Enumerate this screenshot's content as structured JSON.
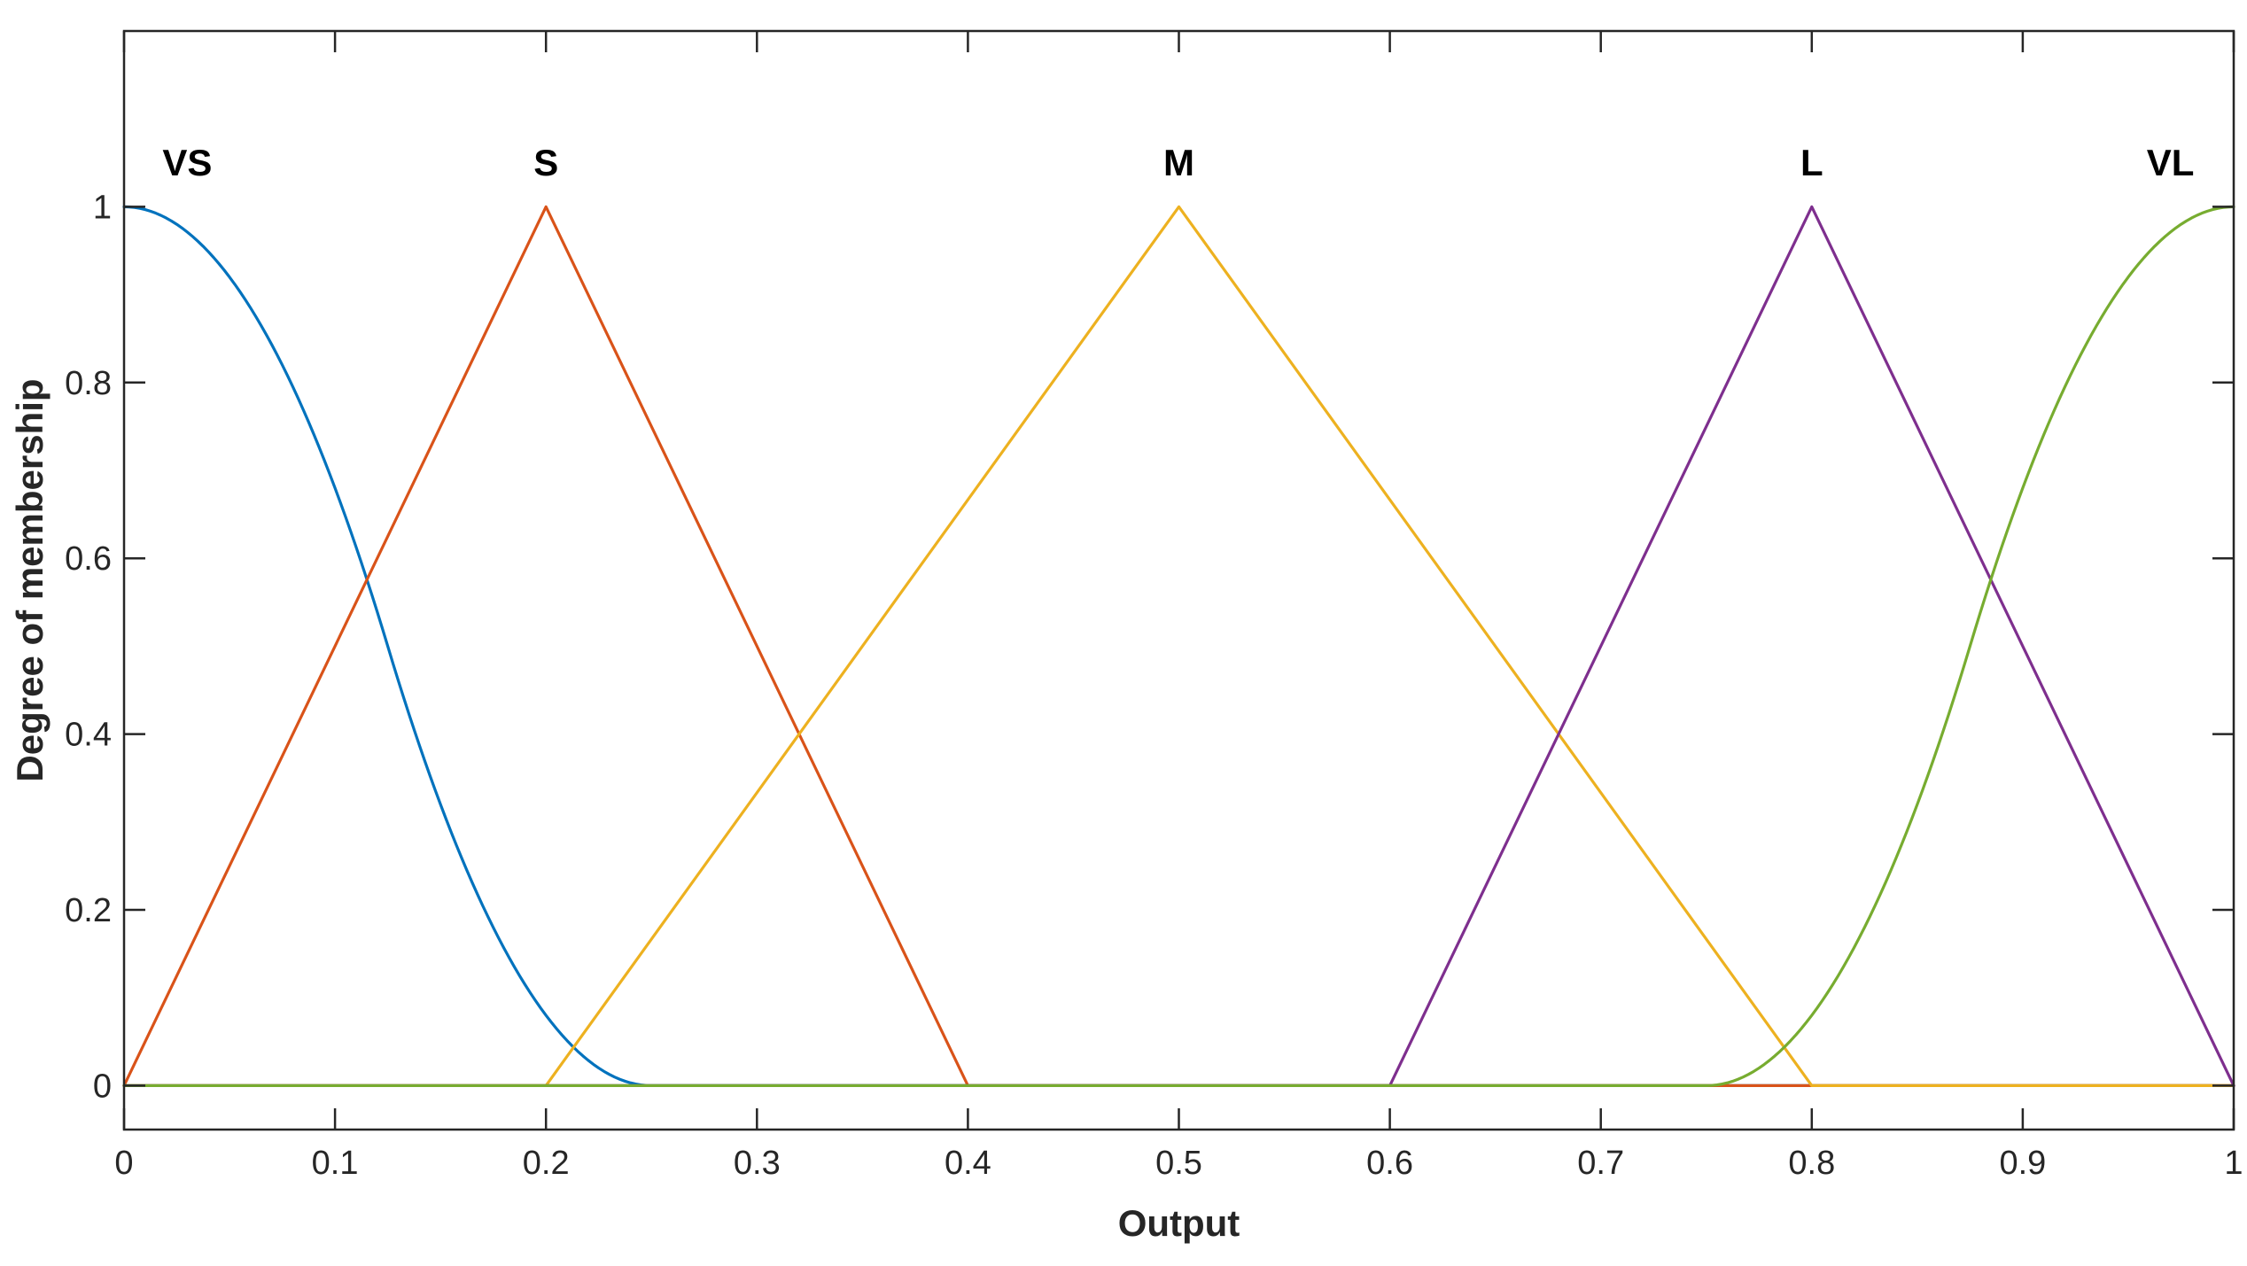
{
  "chart_data": {
    "type": "line",
    "title": "",
    "xlabel": "Output",
    "ylabel": "Degree of membership",
    "xlim": [
      0,
      1
    ],
    "ylim": [
      -0.05,
      1.2
    ],
    "grid": false,
    "x_ticks": [
      0,
      0.1,
      0.2,
      0.3,
      0.4,
      0.5,
      0.6,
      0.7,
      0.8,
      0.9,
      1
    ],
    "x_tick_labels": [
      "0",
      "0.1",
      "0.2",
      "0.3",
      "0.4",
      "0.5",
      "0.6",
      "0.7",
      "0.8",
      "0.9",
      "1"
    ],
    "y_ticks": [
      0,
      0.2,
      0.4,
      0.6,
      0.8,
      1
    ],
    "y_tick_labels": [
      "0",
      "0.2",
      "0.4",
      "0.6",
      "0.8",
      "1"
    ],
    "series": [
      {
        "name": "VS",
        "shape": "z",
        "params": [
          0,
          0.25
        ],
        "color": "#0072BD",
        "label_x": 0.03,
        "label_y": 1.05
      },
      {
        "name": "S",
        "shape": "tri",
        "params": [
          0,
          0.2,
          0.4
        ],
        "color": "#D95319",
        "label_x": 0.2,
        "label_y": 1.05
      },
      {
        "name": "M",
        "shape": "tri",
        "params": [
          0.2,
          0.5,
          0.8
        ],
        "color": "#EDB120",
        "label_x": 0.5,
        "label_y": 1.05
      },
      {
        "name": "L",
        "shape": "tri",
        "params": [
          0.6,
          0.8,
          1.0
        ],
        "color": "#7E2F8E",
        "label_x": 0.8,
        "label_y": 1.05
      },
      {
        "name": "VL",
        "shape": "s",
        "params": [
          0.75,
          1.0
        ],
        "color": "#77AC30",
        "label_x": 0.97,
        "label_y": 1.05
      }
    ]
  }
}
